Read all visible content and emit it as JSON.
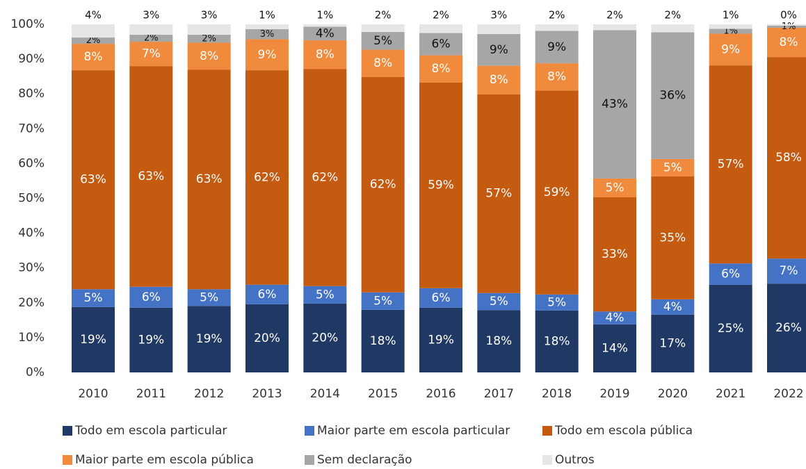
{
  "chart_data": {
    "type": "stacked_bar",
    "categories": [
      "2010",
      "2011",
      "2012",
      "2013",
      "2014",
      "2015",
      "2016",
      "2017",
      "2018",
      "2019",
      "2020",
      "2021",
      "2022"
    ],
    "ylim": [
      0,
      100
    ],
    "yticks": [
      {
        "value": 0,
        "label": "0%"
      },
      {
        "value": 10,
        "label": "10%"
      },
      {
        "value": 20,
        "label": "20%"
      },
      {
        "value": 30,
        "label": "30%"
      },
      {
        "value": 40,
        "label": "40%"
      },
      {
        "value": 50,
        "label": "50%"
      },
      {
        "value": 60,
        "label": "60%"
      },
      {
        "value": 70,
        "label": "70%"
      },
      {
        "value": 80,
        "label": "80%"
      },
      {
        "value": 90,
        "label": "90%"
      },
      {
        "value": 100,
        "label": "100%"
      }
    ],
    "grid": false,
    "legend": "bottom",
    "series": [
      {
        "name": "Todo em escola particular",
        "color": "#203864",
        "values": [
          18.8,
          18.6,
          19.1,
          19.6,
          19.8,
          18.0,
          18.6,
          17.9,
          17.8,
          13.8,
          16.6,
          25.2,
          25.5
        ],
        "value_labels": [
          "19%",
          "19%",
          "19%",
          "20%",
          "20%",
          "18%",
          "19%",
          "18%",
          "18%",
          "14%",
          "17%",
          "25%",
          "26%"
        ]
      },
      {
        "name": "Maior parte em escola particular",
        "color": "#4472c4",
        "values": [
          5.1,
          6.0,
          4.8,
          5.6,
          5.0,
          5.0,
          5.6,
          4.9,
          4.6,
          3.7,
          4.4,
          6.1,
          7.2
        ],
        "value_labels": [
          "5%",
          "6%",
          "5%",
          "6%",
          "5%",
          "5%",
          "6%",
          "5%",
          "5%",
          "4%",
          "4%",
          "6%",
          "7%"
        ]
      },
      {
        "name": "Todo em escola pública",
        "color": "#c55a11",
        "values": [
          62.9,
          63.4,
          63.1,
          61.6,
          62.4,
          61.9,
          59.1,
          57.1,
          58.6,
          32.8,
          35.3,
          56.9,
          57.9
        ],
        "value_labels": [
          "63%",
          "63%",
          "63%",
          "62%",
          "62%",
          "62%",
          "59%",
          "57%",
          "59%",
          "33%",
          "35%",
          "57%",
          "58%"
        ]
      },
      {
        "name": "Maior parte em escola pública",
        "color": "#f08a3c",
        "values": [
          7.6,
          7.0,
          7.7,
          8.9,
          8.2,
          7.8,
          7.8,
          8.2,
          7.8,
          5.4,
          5.0,
          9.1,
          8.4
        ],
        "value_labels": [
          "8%",
          "7%",
          "8%",
          "9%",
          "8%",
          "8%",
          "8%",
          "8%",
          "8%",
          "5%",
          "5%",
          "9%",
          "8%"
        ]
      },
      {
        "name": "Sem declaração",
        "color": "#a6a6a6",
        "values": [
          1.8,
          2.0,
          2.3,
          2.9,
          3.9,
          5.1,
          6.4,
          9.1,
          9.3,
          42.6,
          36.4,
          1.4,
          0.6
        ],
        "value_labels": [
          "2%",
          "2%",
          "2%",
          "3%",
          "4%",
          "5%",
          "6%",
          "9%",
          "9%",
          "43%",
          "36%",
          "1%",
          "1%"
        ]
      },
      {
        "name": "Outros",
        "color": "#e7e6e6",
        "values": [
          3.8,
          3.0,
          3.0,
          1.4,
          0.7,
          2.2,
          2.5,
          2.8,
          1.9,
          1.7,
          2.3,
          1.3,
          0.4
        ],
        "value_labels": [
          "4%",
          "3%",
          "3%",
          "1%",
          "1%",
          "2%",
          "2%",
          "3%",
          "2%",
          "2%",
          "2%",
          "1%",
          "0%"
        ]
      }
    ]
  }
}
